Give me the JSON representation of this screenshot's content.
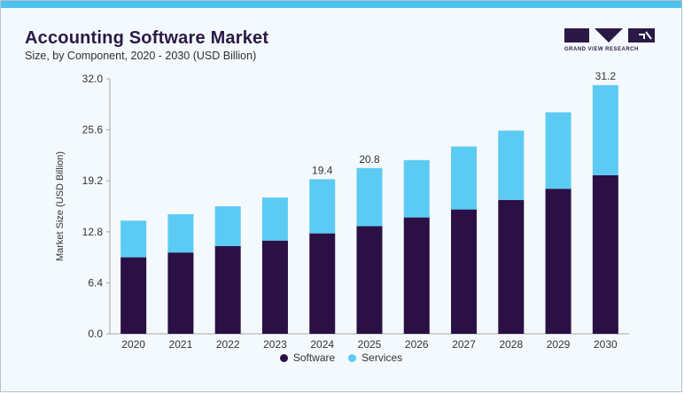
{
  "title": "Accounting Software Market",
  "subtitle": "Size, by Component, 2020 - 2030 (USD Billion)",
  "brand": {
    "name": "GRAND VIEW RESEARCH",
    "primary_color": "#2a1947",
    "accent_color": "#4dc3ef"
  },
  "chart_data": {
    "type": "bar",
    "stacked": true,
    "categories": [
      "2020",
      "2021",
      "2022",
      "2023",
      "2024",
      "2025",
      "2026",
      "2027",
      "2028",
      "2029",
      "2030"
    ],
    "series": [
      {
        "name": "Software",
        "color": "#2a1045",
        "values": [
          9.6,
          10.2,
          11.0,
          11.7,
          12.6,
          13.5,
          14.6,
          15.6,
          16.8,
          18.2,
          19.9
        ]
      },
      {
        "name": "Services",
        "color": "#5ccbf3",
        "values": [
          4.6,
          4.8,
          5.0,
          5.4,
          6.8,
          7.3,
          7.2,
          7.9,
          8.7,
          9.6,
          11.3
        ]
      }
    ],
    "data_labels": [
      {
        "category": "2024",
        "text": "19.4"
      },
      {
        "category": "2025",
        "text": "20.8"
      },
      {
        "category": "2030",
        "text": "31.2"
      }
    ],
    "ylabel": "Market Size (USD Billion)",
    "xlabel": "",
    "ylim": [
      0,
      32
    ],
    "yticks": [
      "0.0",
      "6.4",
      "12.8",
      "19.2",
      "25.6",
      "32.0"
    ],
    "grid": false,
    "legend_position": "bottom-center"
  }
}
